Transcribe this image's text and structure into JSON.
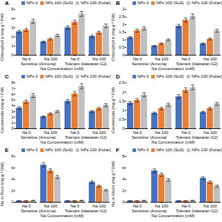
{
  "chart_data": [
    {
      "type": "bar",
      "title": "A",
      "ylabel": "Chlorophyll a (mg g⁻¹ FW)",
      "xlabel": "Na Concentration (mM)",
      "categories": [
        "Na 0",
        "Na 100",
        "Na 0",
        "Na 100"
      ],
      "annotations": [
        "Sensitive (Annona)",
        "Tolerant (Hawaran G2)"
      ],
      "series": [
        {
          "name": "NPs 0",
          "color": "#4472c4",
          "values": [
            2.55,
            1.45,
            3.0,
            2.05
          ],
          "errors": [
            0.153,
            0.087,
            0.18,
            0.123
          ]
        },
        {
          "name": "NPs 100 (SoS)",
          "color": "#ed7d31",
          "values": [
            2.75,
            1.75,
            3.6,
            2.45
          ],
          "errors": [
            0.165,
            0.105,
            0.216,
            0.147
          ]
        },
        {
          "name": "NPs 100 (Foliar)",
          "color": "#bfbfbf",
          "values": [
            3.7,
            2.15,
            4.5,
            3.2
          ],
          "errors": [
            0.222,
            0.129,
            0.27,
            0.192
          ]
        }
      ],
      "ylim": [
        0,
        5
      ],
      "yticks": [
        0,
        1,
        2,
        3,
        4,
        5
      ],
      "legend": "upper right",
      "grid": false
    },
    {
      "type": "bar",
      "title": "B",
      "ylabel": "Chlorophyll b (mg g⁻¹ FW)",
      "xlabel": "Na Concentration (mM)",
      "categories": [
        "Na 0",
        "Na 100",
        "Na 0",
        "Na 100"
      ],
      "annotations": [
        "Sensitive (Annona)",
        "Tolerant (Hawaran G2)"
      ],
      "series": [
        {
          "name": "NPs 0",
          "color": "#4472c4",
          "values": [
            1.15,
            0.6,
            1.9,
            0.75
          ],
          "errors": [
            0.069,
            0.036,
            0.114,
            0.045
          ]
        },
        {
          "name": "NPs 100 (SoS)",
          "color": "#ed7d31",
          "values": [
            1.6,
            0.75,
            2.3,
            1.05
          ],
          "errors": [
            0.096,
            0.045,
            0.138,
            0.063
          ]
        },
        {
          "name": "NPs 100 (Foliar)",
          "color": "#bfbfbf",
          "values": [
            1.75,
            1.0,
            2.55,
            1.6
          ],
          "errors": [
            0.105,
            0.06,
            0.153,
            0.096
          ]
        }
      ],
      "ylim": [
        0,
        3
      ],
      "yticks": [
        0,
        0.5,
        1,
        1.5,
        2,
        2.5,
        3
      ],
      "legend": "upper right",
      "grid": false
    },
    {
      "type": "bar",
      "title": "C",
      "ylabel": "Carotenoids (mg g⁻¹ FW)",
      "xlabel": "Na Concentration (mM)",
      "categories": [
        "Na 0",
        "Na 100",
        "Na 0",
        "Na 100"
      ],
      "annotations": [
        "Sensitive (Annona)",
        "Tolerant (Hawaran G2)"
      ],
      "series": [
        {
          "name": "NPs 0",
          "color": "#4472c4",
          "values": [
            3.6,
            2.1,
            4.8,
            3.0
          ],
          "errors": [
            0.216,
            0.126,
            0.288,
            0.18
          ]
        },
        {
          "name": "NPs 100 (SoS)",
          "color": "#ed7d31",
          "values": [
            4.7,
            2.6,
            6.1,
            3.5
          ],
          "errors": [
            0.282,
            0.156,
            0.366,
            0.21
          ]
        },
        {
          "name": "NPs 100 (Foliar)",
          "color": "#bfbfbf",
          "values": [
            5.8,
            3.0,
            7.4,
            4.1
          ],
          "errors": [
            0.348,
            0.18,
            0.444,
            0.246
          ]
        }
      ],
      "ylim": [
        0,
        8
      ],
      "yticks": [
        0,
        1,
        2,
        3,
        4,
        5,
        6,
        7,
        8
      ],
      "legend": "upper right",
      "grid": false
    },
    {
      "type": "bar",
      "title": "D",
      "ylabel": "Carotenoids (mg g⁻¹ FW)",
      "xlabel": "Na Concentration (mM)",
      "categories": [
        "Na 0",
        "Na 100",
        "Na 0",
        "Na 100"
      ],
      "annotations": [
        "Sensitive (Annona)",
        "Tolerant (Hawaran G2)"
      ],
      "series": [
        {
          "name": "NPs 0",
          "color": "#4472c4",
          "values": [
            1.4,
            0.85,
            1.75,
            0.9
          ],
          "errors": [
            0.084,
            0.051,
            0.105,
            0.054
          ]
        },
        {
          "name": "NPs 100 (SoS)",
          "color": "#ed7d31",
          "values": [
            1.55,
            1.1,
            2.1,
            1.1
          ],
          "errors": [
            0.093,
            0.066,
            0.126,
            0.066
          ]
        },
        {
          "name": "NPs 100 (Foliar)",
          "color": "#bfbfbf",
          "values": [
            1.85,
            1.3,
            2.25,
            1.35
          ],
          "errors": [
            0.111,
            0.078,
            0.135,
            0.081
          ]
        }
      ],
      "ylim": [
        0,
        2.5
      ],
      "yticks": [
        0,
        0.5,
        1,
        1.5,
        2,
        2.5
      ],
      "legend": "upper right",
      "grid": false
    },
    {
      "type": "bar",
      "title": "E",
      "ylabel": "Na in Root (mg g⁻¹ DW)",
      "xlabel": "Na Concentration (mM)",
      "categories": [
        "Na 0",
        "Na 100",
        "Na 0",
        "Na 100"
      ],
      "annotations": [
        "Sensitive (Annona)",
        "Tolerant (Hawaran G2)"
      ],
      "series": [
        {
          "name": "NPs 0",
          "color": "#4472c4",
          "values": [
            0.25,
            6.5,
            0.25,
            3.5
          ],
          "errors": [
            0.015,
            0.39,
            0.015,
            0.21
          ]
        },
        {
          "name": "NPs 100 (SoS)",
          "color": "#ed7d31",
          "values": [
            0.25,
            5.5,
            0.25,
            2.8
          ],
          "errors": [
            0.015,
            0.33,
            0.015,
            0.168
          ]
        },
        {
          "name": "NPs 100 (Foliar)",
          "color": "#bfbfbf",
          "values": [
            0.3,
            4.4,
            0.3,
            2.1
          ],
          "errors": [
            0.018,
            0.264,
            0.018,
            0.126
          ]
        }
      ],
      "ylim": [
        0,
        8
      ],
      "yticks": [
        0,
        2,
        4,
        6,
        8
      ],
      "legend": "upper right",
      "grid": false
    },
    {
      "type": "bar",
      "title": "F",
      "ylabel": "Na in Shoot (mg g⁻¹ DW)",
      "xlabel": "Na Concentration (mM)",
      "categories": [
        "Na 0",
        "Na 100",
        "Na 0",
        "Na 100"
      ],
      "annotations": [
        "Sensitive (Annona)",
        "Tolerant (Hawaran G2)"
      ],
      "series": [
        {
          "name": "NPs 0",
          "color": "#4472c4",
          "values": [
            0.25,
            5.5,
            0.25,
            4.2
          ],
          "errors": [
            0.015,
            0.33,
            0.015,
            0.252
          ]
        },
        {
          "name": "NPs 100 (SoS)",
          "color": "#ed7d31",
          "values": [
            0.25,
            4.8,
            0.25,
            3.5
          ],
          "errors": [
            0.015,
            0.288,
            0.015,
            0.21
          ]
        },
        {
          "name": "NPs 100 (Foliar)",
          "color": "#bfbfbf",
          "values": [
            0.3,
            3.9,
            0.3,
            2.8
          ],
          "errors": [
            0.018,
            0.234,
            0.018,
            0.168
          ]
        }
      ],
      "ylim": [
        0,
        8
      ],
      "yticks": [
        0,
        2,
        4,
        6,
        8
      ],
      "legend": "upper right",
      "grid": false
    }
  ]
}
